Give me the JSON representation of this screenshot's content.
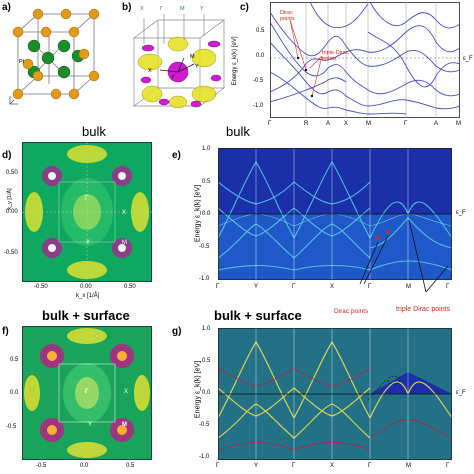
{
  "panels": {
    "a": {
      "label": "a)",
      "atoms": [
        {
          "label": "Pt"
        }
      ]
    },
    "b": {
      "label": "b)",
      "top_ticks": [
        "X",
        "Γ",
        "M",
        "Y"
      ],
      "labels": {
        "x": "X",
        "y": "Y",
        "m": "M",
        "g": "Γ"
      }
    },
    "c": {
      "label": "c)",
      "ylabel": "Energy ε_k(k) [eV]",
      "yticks": [
        "0.5",
        "0.0",
        "-0.5",
        "-1.0"
      ],
      "xticks": [
        "Γ",
        "R",
        "A",
        "X",
        "M",
        "Γ",
        "A",
        "M"
      ],
      "annotations": {
        "dirac": "Dirac points",
        "triple": "triple-Dirac points"
      },
      "ef": "ε_F"
    },
    "d": {
      "label": "d)",
      "title": "bulk",
      "yticks": [
        "0.50",
        "0.00",
        "-0.50"
      ],
      "xticks": [
        "-0.50",
        "0.00",
        "0.50"
      ],
      "xlabel": "k_x [1/Å]",
      "ylabel": "k_y [1/Å]",
      "points": {
        "g": "Γ",
        "x": "X",
        "y": "Y",
        "m": "M"
      }
    },
    "e": {
      "label": "e)",
      "title": "bulk",
      "ylabel": "Energy ε_k(k) [eV]",
      "yticks": [
        "1.0",
        "0.5",
        "0.0",
        "-0.5",
        "-1.0"
      ],
      "xticks": [
        "Γ",
        "Y",
        "Γ",
        "X",
        "Γ",
        "M",
        "Γ"
      ],
      "annotations": {
        "dirac": "Dirac points",
        "triple": "triple Dirac points"
      },
      "ef": "ε_F"
    },
    "f": {
      "label": "f)",
      "title": "bulk + surface",
      "yticks": [
        "0.5",
        "0.0",
        "-0.5"
      ],
      "xticks": [
        "-0.5",
        "0.0",
        "0.5"
      ],
      "points": {
        "g": "Γ",
        "x": "X",
        "y": "Y",
        "m": "M"
      }
    },
    "g": {
      "label": "g)",
      "title": "bulk + surface",
      "ylabel": "Energy ε_k(k) [eV]",
      "yticks": [
        "1.0",
        "0.5",
        "0.0",
        "-0.5",
        "-1.0"
      ],
      "xticks": [
        "Γ",
        "Y",
        "Γ",
        "X",
        "Γ",
        "M",
        "Γ"
      ],
      "ef": "ε_F"
    }
  },
  "colors": {
    "band_line": "#4a4ad2",
    "spectral_bg": "#1a2fa8",
    "spectral_line": "#58d2e6",
    "fermi_map_bg": "#0fa860",
    "annotation": "#d42a1e"
  }
}
